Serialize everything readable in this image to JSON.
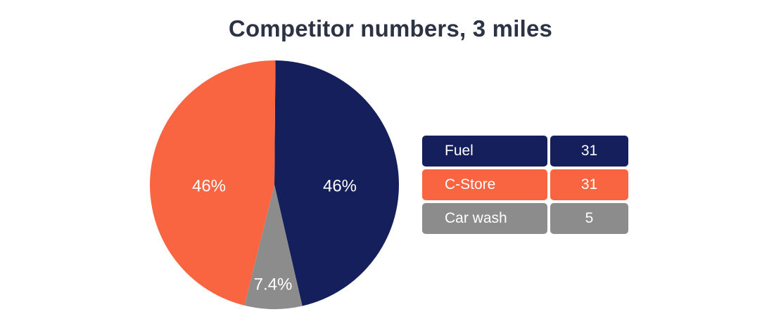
{
  "chart_data": {
    "type": "pie",
    "title": "Competitor numbers, 3 miles",
    "slices": [
      {
        "name": "Fuel",
        "value": 31,
        "percent_label": "46%",
        "color": "#151f5b"
      },
      {
        "name": "Car wash",
        "value": 5,
        "percent_label": "7.4%",
        "color": "#8c8c8c"
      },
      {
        "name": "C-Store",
        "value": 31,
        "percent_label": "46%",
        "color": "#fa6541"
      }
    ],
    "legend": [
      {
        "name": "Fuel",
        "value": "31",
        "color": "#151f5b"
      },
      {
        "name": "C-Store",
        "value": "31",
        "color": "#fa6541"
      },
      {
        "name": "Car wash",
        "value": "5",
        "color": "#8c8c8c"
      }
    ],
    "legend_placement": "right"
  }
}
